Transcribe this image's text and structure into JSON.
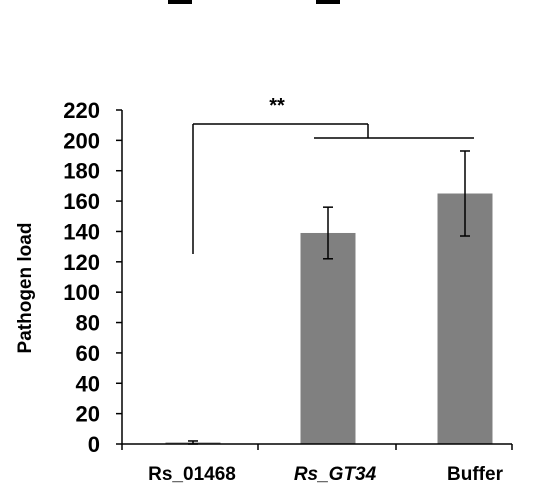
{
  "chart_data": {
    "type": "bar",
    "title": "",
    "xlabel": "",
    "ylabel": "Pathogen load",
    "ylim": [
      0,
      220
    ],
    "yticks": [
      0,
      20,
      40,
      60,
      80,
      100,
      120,
      140,
      160,
      180,
      200,
      220
    ],
    "categories": [
      "Rs_01468",
      "Rs_GT34",
      "Buffer"
    ],
    "category_styles": [
      "normal",
      "italic",
      "normal"
    ],
    "values": [
      1,
      139,
      165
    ],
    "errors": [
      1,
      17,
      28
    ],
    "bar_color": "#808080",
    "grid": false,
    "significance": {
      "label": "**",
      "from": "Rs_01468",
      "to": [
        "Rs_GT34",
        "Buffer"
      ]
    }
  }
}
